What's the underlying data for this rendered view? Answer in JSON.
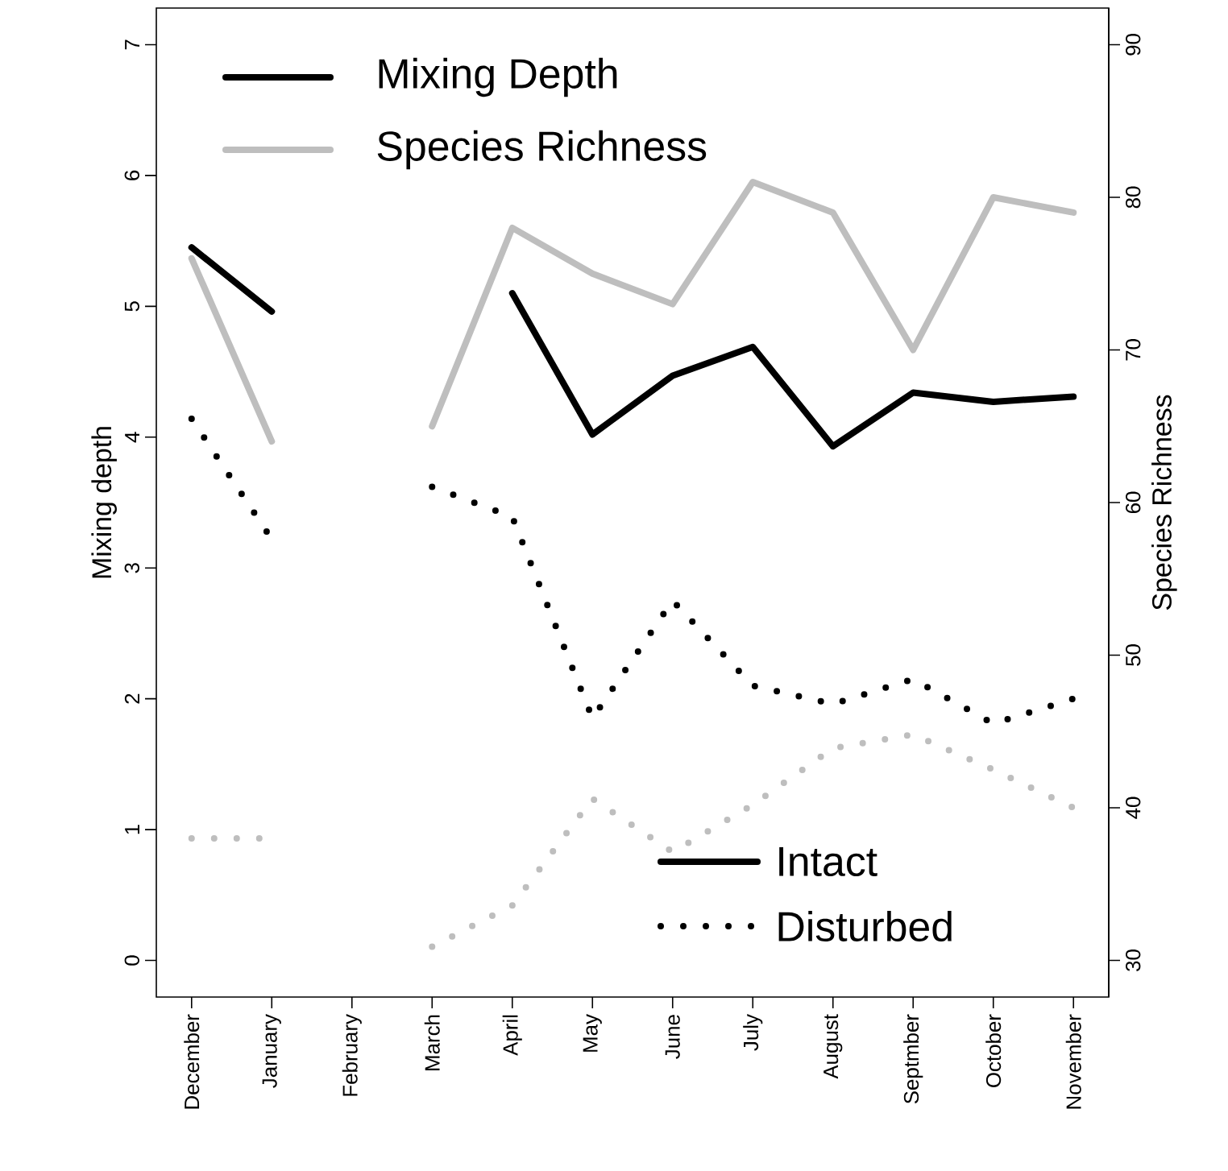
{
  "chart_data": {
    "type": "line",
    "ylabel": "Mixing depth",
    "y2label": "Species Richness",
    "categories": [
      "December",
      "January",
      "February",
      "March",
      "April",
      "May",
      "June",
      "July",
      "August",
      "Septmber",
      "October",
      "November"
    ],
    "ylim": [
      -0.28,
      7.28
    ],
    "yticks": [
      0,
      1,
      2,
      3,
      4,
      5,
      6,
      7
    ],
    "y2lim": [
      27.6,
      92.4
    ],
    "y2ticks": [
      30,
      40,
      50,
      60,
      70,
      80,
      90
    ],
    "legend": "top left",
    "grid": false,
    "marker": "none",
    "annotations": [
      "Intact",
      "Disturbed"
    ],
    "series": [
      {
        "name": "Mixing Depth",
        "color": "#000000",
        "line_style": "solid",
        "values": [
          5.45,
          4.96,
          null,
          null,
          5.1,
          4.02,
          4.47,
          4.69,
          3.93,
          4.34,
          4.27,
          4.31
        ]
      },
      {
        "color": "#000000",
        "line_style": "dotted",
        "values": [
          4.14,
          3.22,
          null,
          3.62,
          3.39,
          1.85,
          2.75,
          2.1,
          1.96,
          2.15,
          1.81,
          2.0
        ]
      },
      {
        "name": "Species Richness",
        "color": "#bebebe",
        "axis": "y2",
        "line_style": "solid",
        "values": [
          76,
          64,
          null,
          65,
          78,
          75,
          73,
          81,
          79,
          70,
          80,
          79
        ]
      },
      {
        "color": "#bebebe",
        "axis": "y2",
        "line_style": "dotted",
        "values": [
          38,
          38,
          null,
          30.9,
          33.6,
          40.6,
          37.1,
          40.2,
          43.9,
          44.8,
          42.5,
          40
        ]
      }
    ]
  }
}
